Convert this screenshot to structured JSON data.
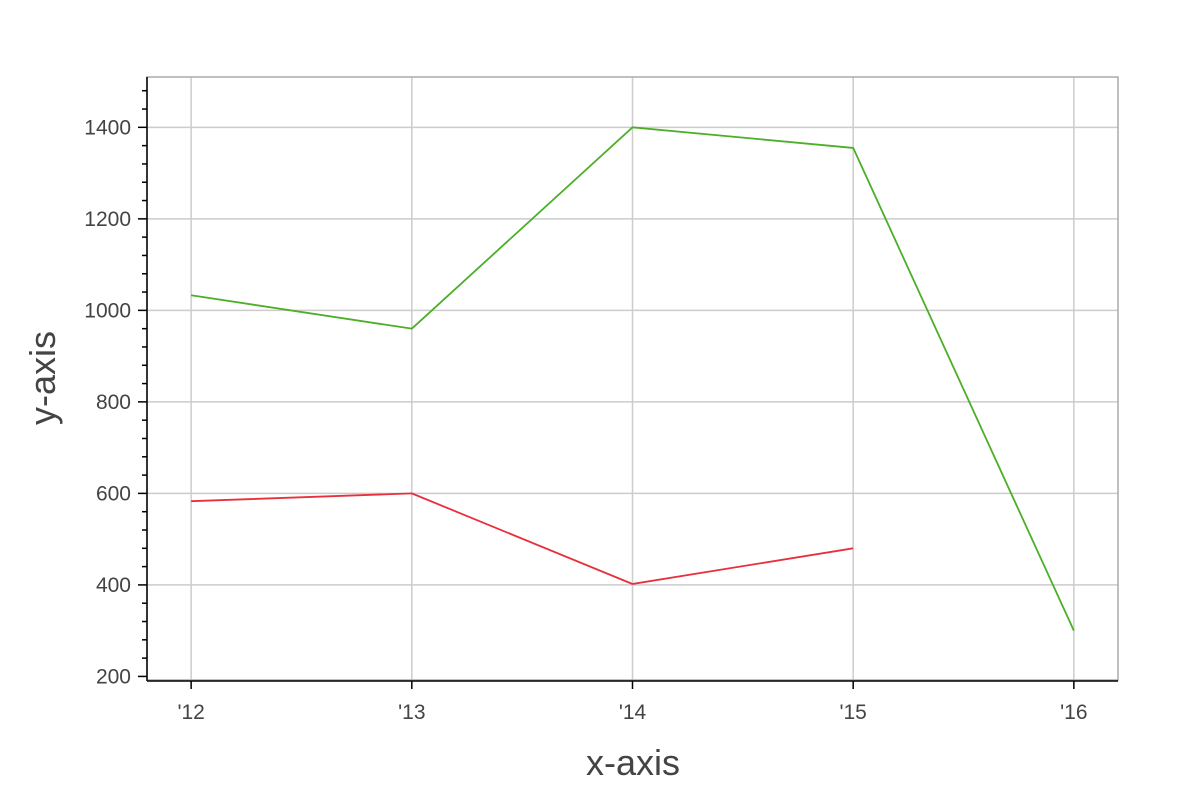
{
  "chart_data": {
    "type": "line",
    "xlabel": "x-axis",
    "ylabel": "y-axis",
    "x": [
      2012,
      2013,
      2014,
      2015,
      2016
    ],
    "x_tick_labels": [
      "'12",
      "'13",
      "'14",
      "'15",
      "'16"
    ],
    "xlim": [
      2011.8,
      2016.2
    ],
    "ylim": [
      190,
      1510
    ],
    "y_ticks": [
      200,
      400,
      600,
      800,
      1000,
      1200,
      1400
    ],
    "y_minor_step": 40,
    "grid": true,
    "series": [
      {
        "color": "#e8303d",
        "values": [
          583,
          600,
          402,
          480,
          null
        ]
      },
      {
        "color": "#4caf28",
        "values": [
          1033,
          960,
          1400,
          1355,
          300
        ]
      }
    ]
  }
}
